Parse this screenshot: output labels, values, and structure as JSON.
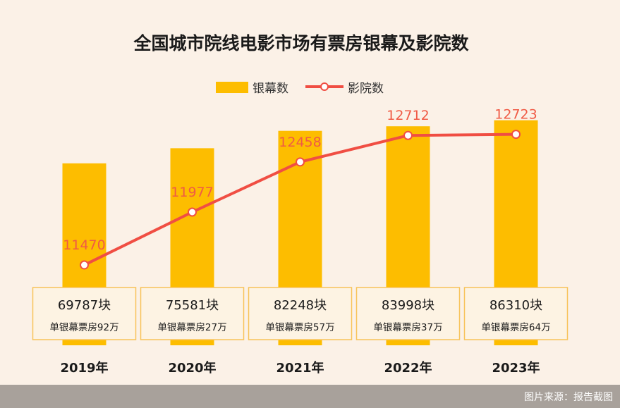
{
  "chart_data": {
    "type": "bar",
    "title": "全国城市院线电影市场有票房银幕及影院数",
    "categories": [
      "2019年",
      "2020年",
      "2021年",
      "2022年",
      "2023年"
    ],
    "series": [
      {
        "name": "银幕数",
        "type": "bar",
        "values": [
          69787,
          75581,
          82248,
          83998,
          86310
        ],
        "color": "#fdbd00"
      },
      {
        "name": "影院数",
        "type": "line",
        "values": [
          11470,
          11977,
          12458,
          12712,
          12723
        ],
        "color": "#f04e43"
      }
    ],
    "bar_labels": [
      "69787块",
      "75581块",
      "82248块",
      "83998块",
      "86310块"
    ],
    "bar_sublabels": [
      "单银幕票房92万",
      "单银幕票房27万",
      "单银幕票房57万",
      "单银幕票房37万",
      "单银幕票房64万"
    ],
    "line_labels": [
      "11470",
      "11977",
      "12458",
      "12712",
      "12723"
    ],
    "bar_ylim": [
      0,
      100000
    ],
    "line_ylim": [
      10700,
      13200
    ],
    "legend_position": "top-center",
    "grid": false
  },
  "footer": {
    "source": "图片来源：报告截图"
  }
}
